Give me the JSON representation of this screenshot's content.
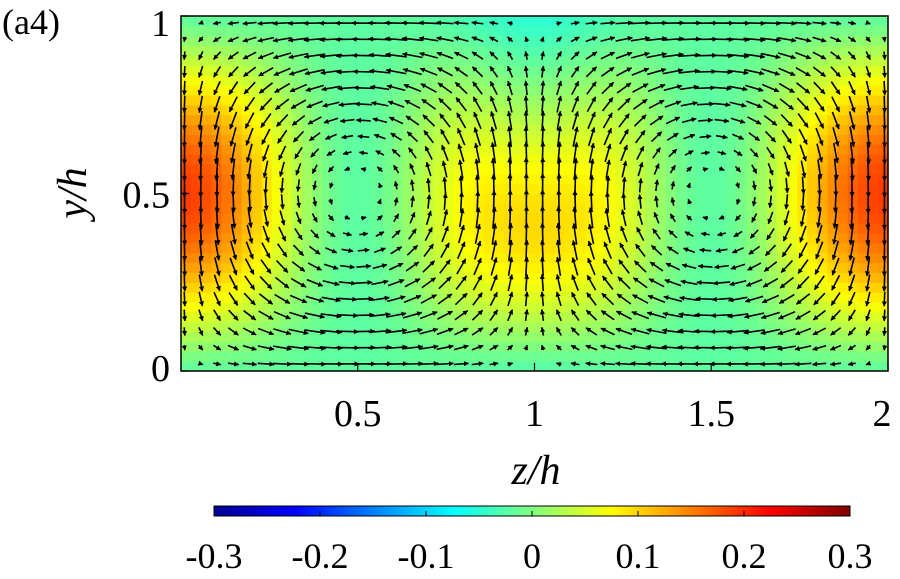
{
  "panel_label": "(a4)",
  "chart_data": {
    "type": "heatmap",
    "subtype": "contour-with-quiver",
    "xlabel": "z/h",
    "ylabel": "y/h",
    "xlim": [
      0,
      2
    ],
    "ylim": [
      0,
      1
    ],
    "x_ticks": [
      0.5,
      1,
      1.5,
      2
    ],
    "x_tick_labels": [
      "0.5",
      "1",
      "1.5",
      "2"
    ],
    "y_ticks": [
      0,
      0.5,
      1
    ],
    "y_tick_labels": [
      "0",
      "0.5",
      "1"
    ],
    "colorbar": {
      "orientation": "horizontal",
      "location": "bottom",
      "colormap": "jet",
      "range": [
        -0.3,
        0.3
      ],
      "ticks": [
        -0.3,
        -0.2,
        -0.1,
        0,
        0.1,
        0.2,
        0.3
      ],
      "tick_labels": [
        "-0.3",
        "-0.2",
        "-0.1",
        "0",
        "0.1",
        "0.2",
        "0.3"
      ]
    },
    "field": {
      "description_values": [
        {
          "z": 0.0,
          "y": 0.5,
          "value": 0.22
        },
        {
          "z": 0.3,
          "y": 0.5,
          "value": 0.12
        },
        {
          "z": 1.0,
          "y": 0.6,
          "value": -0.13
        },
        {
          "z": 1.7,
          "y": 0.5,
          "value": 0.12
        },
        {
          "z": 2.0,
          "y": 0.5,
          "value": 0.22
        },
        {
          "z": 1.0,
          "y": 0.0,
          "value": 0.0
        },
        {
          "z": 1.0,
          "y": 1.0,
          "value": 0.0
        }
      ]
    },
    "vectors": {
      "pattern": "two counter-rotating vortices",
      "vortex_centers": [
        {
          "z": 0.5,
          "y": 0.5
        },
        {
          "z": 1.5,
          "y": 0.5
        }
      ],
      "flow_at_center_line": "upward (positive y) at z/h = 1",
      "flow_at_side_walls": "downward (negative y) at z/h = 0 and z/h = 2"
    }
  }
}
